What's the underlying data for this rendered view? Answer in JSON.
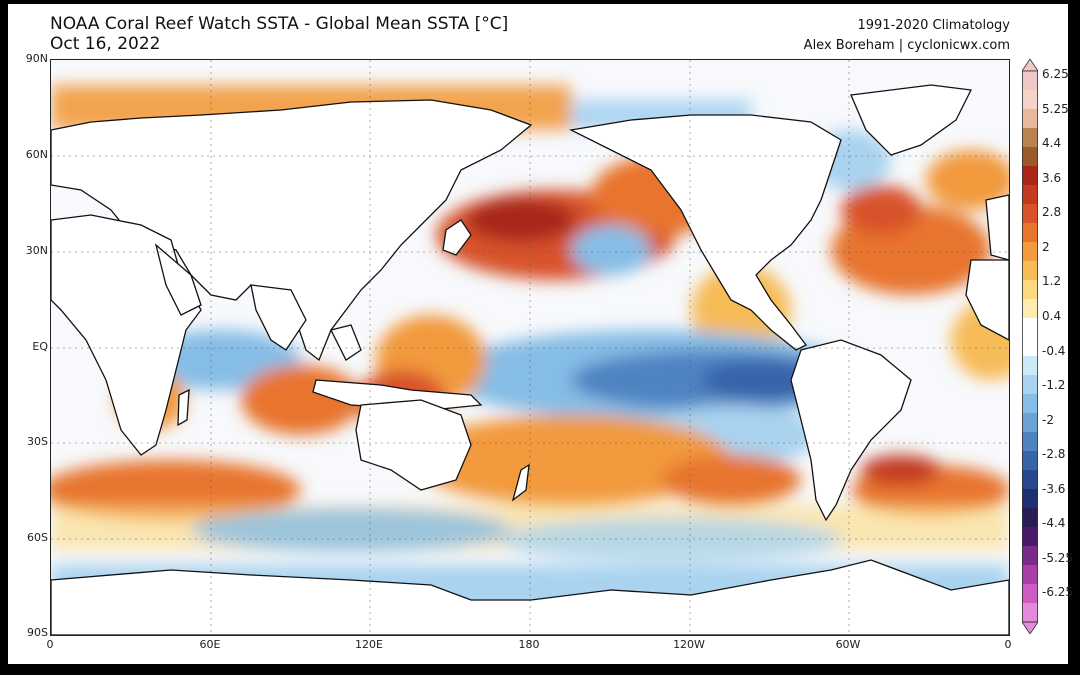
{
  "header": {
    "title": "NOAA Coral Reef Watch SSTA - Global Mean SSTA [°C]",
    "date": "Oct 16, 2022",
    "climatology": "1991-2020 Climatology",
    "credit": "Alex Boreham | cyclonicwx.com"
  },
  "axes": {
    "lat_labels": [
      "90N",
      "60N",
      "30N",
      "EQ",
      "30S",
      "60S",
      "90S"
    ],
    "lon_labels": [
      "0",
      "60E",
      "120E",
      "180",
      "120W",
      "60W",
      "0"
    ]
  },
  "colorbar": {
    "labels": [
      "6.25",
      "5.25",
      "4.4",
      "3.6",
      "2.8",
      "2",
      "1.2",
      "0.4",
      "-0.4",
      "-1.2",
      "-2",
      "-2.8",
      "-3.6",
      "-4.4",
      "-5.25",
      "-6.25"
    ],
    "colors": [
      "#f0c8c8",
      "#f4d4c8",
      "#e9b79b",
      "#b9824f",
      "#9a5a2a",
      "#a8261a",
      "#c23a20",
      "#d8532a",
      "#e8742e",
      "#f29a3c",
      "#f7bb58",
      "#fbd97e",
      "#fdeeb0",
      "#ffffff",
      "#ffffff",
      "#cde8f6",
      "#a9d3ef",
      "#86bde6",
      "#6aa2d6",
      "#4f83c2",
      "#3864aa",
      "#274891",
      "#1f3070",
      "#2a1a55",
      "#4a1a6a",
      "#7a2a8a",
      "#a83ea6",
      "#cc5cc2",
      "#e48ada"
    ]
  },
  "map": {
    "land_color": "#ffffff",
    "ocean_base": "#f7f9fc",
    "warm_color": "#ef8a3a",
    "strong_warm_color": "#c8361c",
    "cool_color": "#8ec6ec",
    "strong_cool_color": "#3f6fb8"
  }
}
